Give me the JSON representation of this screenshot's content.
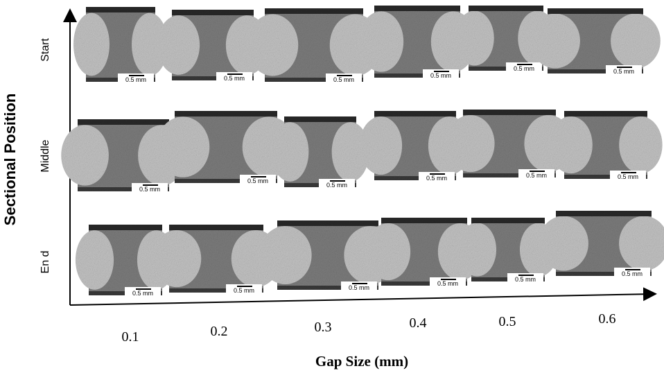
{
  "y_axis": {
    "label": "Sectional Position"
  },
  "x_axis": {
    "label": "Gap Size (mm)",
    "columns": [
      "0.1",
      "0.2",
      "0.3",
      "0.4",
      "0.5",
      "0.6"
    ]
  },
  "rows": [
    {
      "label": "Start",
      "scale_labels": [
        "0.5 mm",
        "0.5 mm",
        "0.5 mm",
        "0.5 mm",
        "0.5 mm",
        "0.5 mm"
      ]
    },
    {
      "label": "Middle",
      "scale_labels": [
        "0.5 mm",
        "0.5 mm",
        "0.5 mm",
        "0.5 mm",
        "0.5 mm",
        "0.5 mm"
      ]
    },
    {
      "label": "En d",
      "scale_labels": [
        "0.5 mm",
        "0.5 mm",
        "0.5 mm",
        "0.5 mm",
        "0.5 mm",
        "0.5 mm"
      ]
    }
  ]
}
